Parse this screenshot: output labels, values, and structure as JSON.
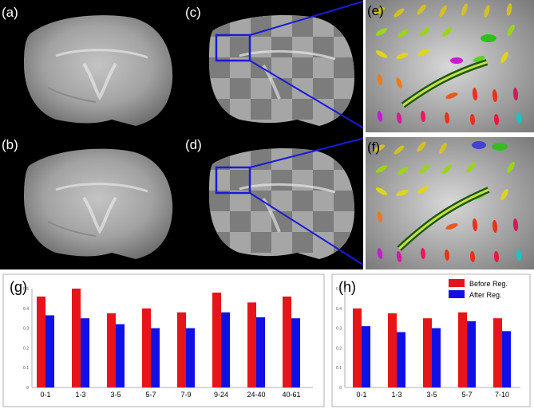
{
  "figure": {
    "panels": [
      {
        "label": "(a)"
      },
      {
        "label": "(b)"
      },
      {
        "label": "(c)"
      },
      {
        "label": "(d)"
      },
      {
        "label": "(e)"
      },
      {
        "label": "(f)"
      }
    ]
  },
  "colors": {
    "before": "#e8141c",
    "after": "#1010e6",
    "zoom_box": "#1a1ad8",
    "image_bg": "#000000"
  },
  "chart_data": [
    {
      "type": "bar",
      "label": "(g)",
      "categories": [
        "0-1",
        "1-3",
        "3-5",
        "5-7",
        "7-9",
        "9-24",
        "24-40",
        "40-61"
      ],
      "series": [
        {
          "name": "Before Reg.",
          "values": [
            0.46,
            0.5,
            0.375,
            0.4,
            0.38,
            0.48,
            0.43,
            0.46
          ]
        },
        {
          "name": "After Reg.",
          "values": [
            0.365,
            0.35,
            0.32,
            0.3,
            0.3,
            0.38,
            0.355,
            0.35
          ]
        }
      ],
      "ylim": [
        0,
        0.5
      ],
      "yticks": [
        "0.5",
        "0.4",
        "0.3",
        "0.2",
        "0.1",
        "0"
      ],
      "grid": false
    },
    {
      "type": "bar",
      "label": "(h)",
      "categories": [
        "0-1",
        "1-3",
        "3-5",
        "5-7",
        "7-10"
      ],
      "series": [
        {
          "name": "Before Reg.",
          "values": [
            0.4,
            0.375,
            0.35,
            0.38,
            0.35
          ]
        },
        {
          "name": "After Reg.",
          "values": [
            0.31,
            0.28,
            0.3,
            0.335,
            0.285
          ]
        }
      ],
      "ylim": [
        0,
        0.5
      ],
      "yticks": [
        "0.5",
        "0.4",
        "0.3",
        "0.2",
        "0.1",
        "0"
      ],
      "legend": {
        "placement": "top-right",
        "entries": [
          "Before Reg.",
          "After Reg."
        ]
      },
      "grid": false
    }
  ]
}
